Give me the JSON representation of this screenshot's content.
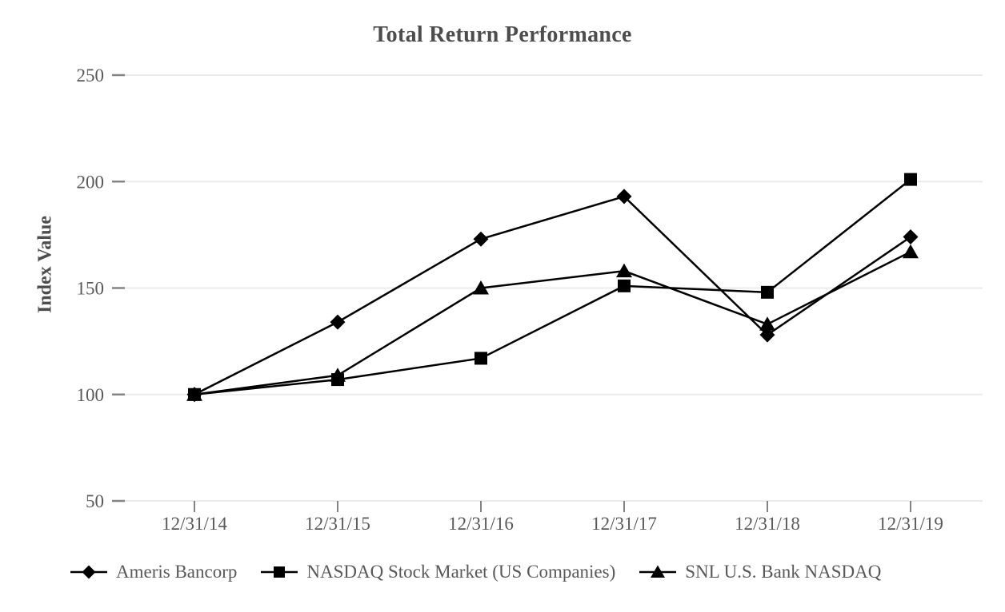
{
  "chart_data": {
    "type": "line",
    "title": "Total Return Performance",
    "ylabel": "Index Value",
    "xlabel": "",
    "categories": [
      "12/31/14",
      "12/31/15",
      "12/31/16",
      "12/31/17",
      "12/31/18",
      "12/31/19"
    ],
    "series": [
      {
        "name": "Ameris Bancorp",
        "marker": "diamond",
        "values": [
          100,
          134,
          173,
          193,
          128,
          174
        ]
      },
      {
        "name": "NASDAQ Stock Market (US Companies)",
        "marker": "square",
        "values": [
          100,
          107,
          117,
          151,
          148,
          201
        ]
      },
      {
        "name": "SNL U.S. Bank NASDAQ",
        "marker": "triangle",
        "values": [
          100,
          109,
          150,
          158,
          133,
          167
        ]
      }
    ],
    "yticks": [
      250,
      200,
      150,
      100,
      50
    ],
    "ylim": [
      50,
      250
    ],
    "grid": true,
    "legend_position": "bottom",
    "colors": {
      "line": "#000000",
      "marker": "#000000",
      "grid": "#ebebeb",
      "tick": "#848484",
      "text": "#595959",
      "title": "#4d4d4d",
      "background": "#ffffff"
    }
  }
}
